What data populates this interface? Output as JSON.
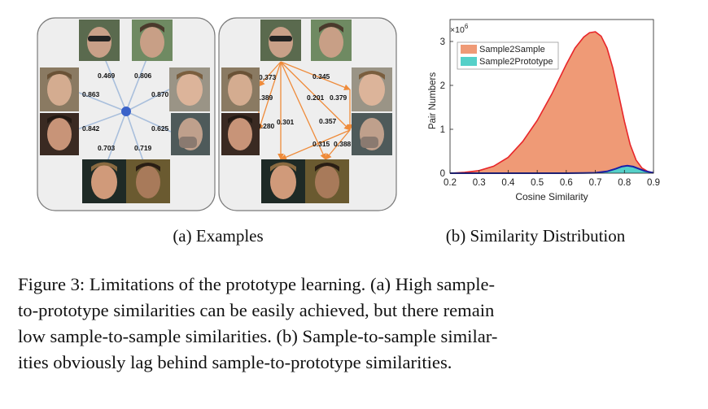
{
  "panel_a": {
    "caption": "(a) Examples",
    "left_similarities": [
      "0.469",
      "0.806",
      "0.863",
      "0.870",
      "0.842",
      "0.625",
      "0.703",
      "0.719"
    ],
    "right_similarities": [
      "0.373",
      "0.345",
      "0.389",
      "0.201",
      "0.379",
      "0.301",
      "0.357",
      "0.280",
      "0.315",
      "0.388"
    ],
    "colors": {
      "prototype_edge": "#a9bfdc",
      "prototype_node": "#3a62c9",
      "sample_edge": "#ef8b3a",
      "panel_bg": "#eeeeee",
      "panel_border": "#7a7a7a"
    }
  },
  "panel_b": {
    "caption": "(b) Similarity Distribution"
  },
  "chart_data": {
    "type": "area",
    "xlabel": "Cosine Similarity",
    "ylabel": "Pair Numbers",
    "y_multiplier": "×10",
    "y_multiplier_exp": "6",
    "xlim": [
      0.2,
      0.9
    ],
    "ylim": [
      0,
      3.5
    ],
    "x_ticks": [
      "0.2",
      "0.3",
      "0.4",
      "0.5",
      "0.6",
      "0.7",
      "0.8",
      "0.9"
    ],
    "y_ticks": [
      "0",
      "1",
      "2",
      "3"
    ],
    "legend_position": "top-right",
    "series": [
      {
        "name": "Sample2Sample",
        "fill": "#ef9a76",
        "stroke": "#e8262a",
        "x": [
          0.2,
          0.25,
          0.3,
          0.35,
          0.4,
          0.45,
          0.5,
          0.55,
          0.6,
          0.63,
          0.66,
          0.68,
          0.7,
          0.72,
          0.74,
          0.76,
          0.78,
          0.8,
          0.82,
          0.84,
          0.86,
          0.88,
          0.9
        ],
        "values": [
          0.0,
          0.02,
          0.06,
          0.16,
          0.36,
          0.72,
          1.2,
          1.8,
          2.48,
          2.85,
          3.1,
          3.2,
          3.22,
          3.12,
          2.85,
          2.4,
          1.8,
          1.18,
          0.65,
          0.3,
          0.12,
          0.04,
          0.01
        ]
      },
      {
        "name": "Sample2Prototype",
        "fill": "#55d0c8",
        "stroke": "#1b1fa8",
        "x": [
          0.2,
          0.6,
          0.66,
          0.7,
          0.74,
          0.77,
          0.79,
          0.81,
          0.83,
          0.85,
          0.87,
          0.89,
          0.9
        ],
        "values": [
          0.0,
          0.0,
          0.005,
          0.01,
          0.04,
          0.1,
          0.15,
          0.17,
          0.15,
          0.1,
          0.05,
          0.02,
          0.01
        ]
      }
    ]
  },
  "caption": {
    "lines": [
      "Figure 3: Limitations of the prototype learning. (a) High sample-",
      "to-prototype similarities can be easily achieved, but there remain",
      "low sample-to-sample similarities. (b) Sample-to-sample similar-",
      "ities obviously lag behind sample-to-prototype similarities."
    ]
  }
}
